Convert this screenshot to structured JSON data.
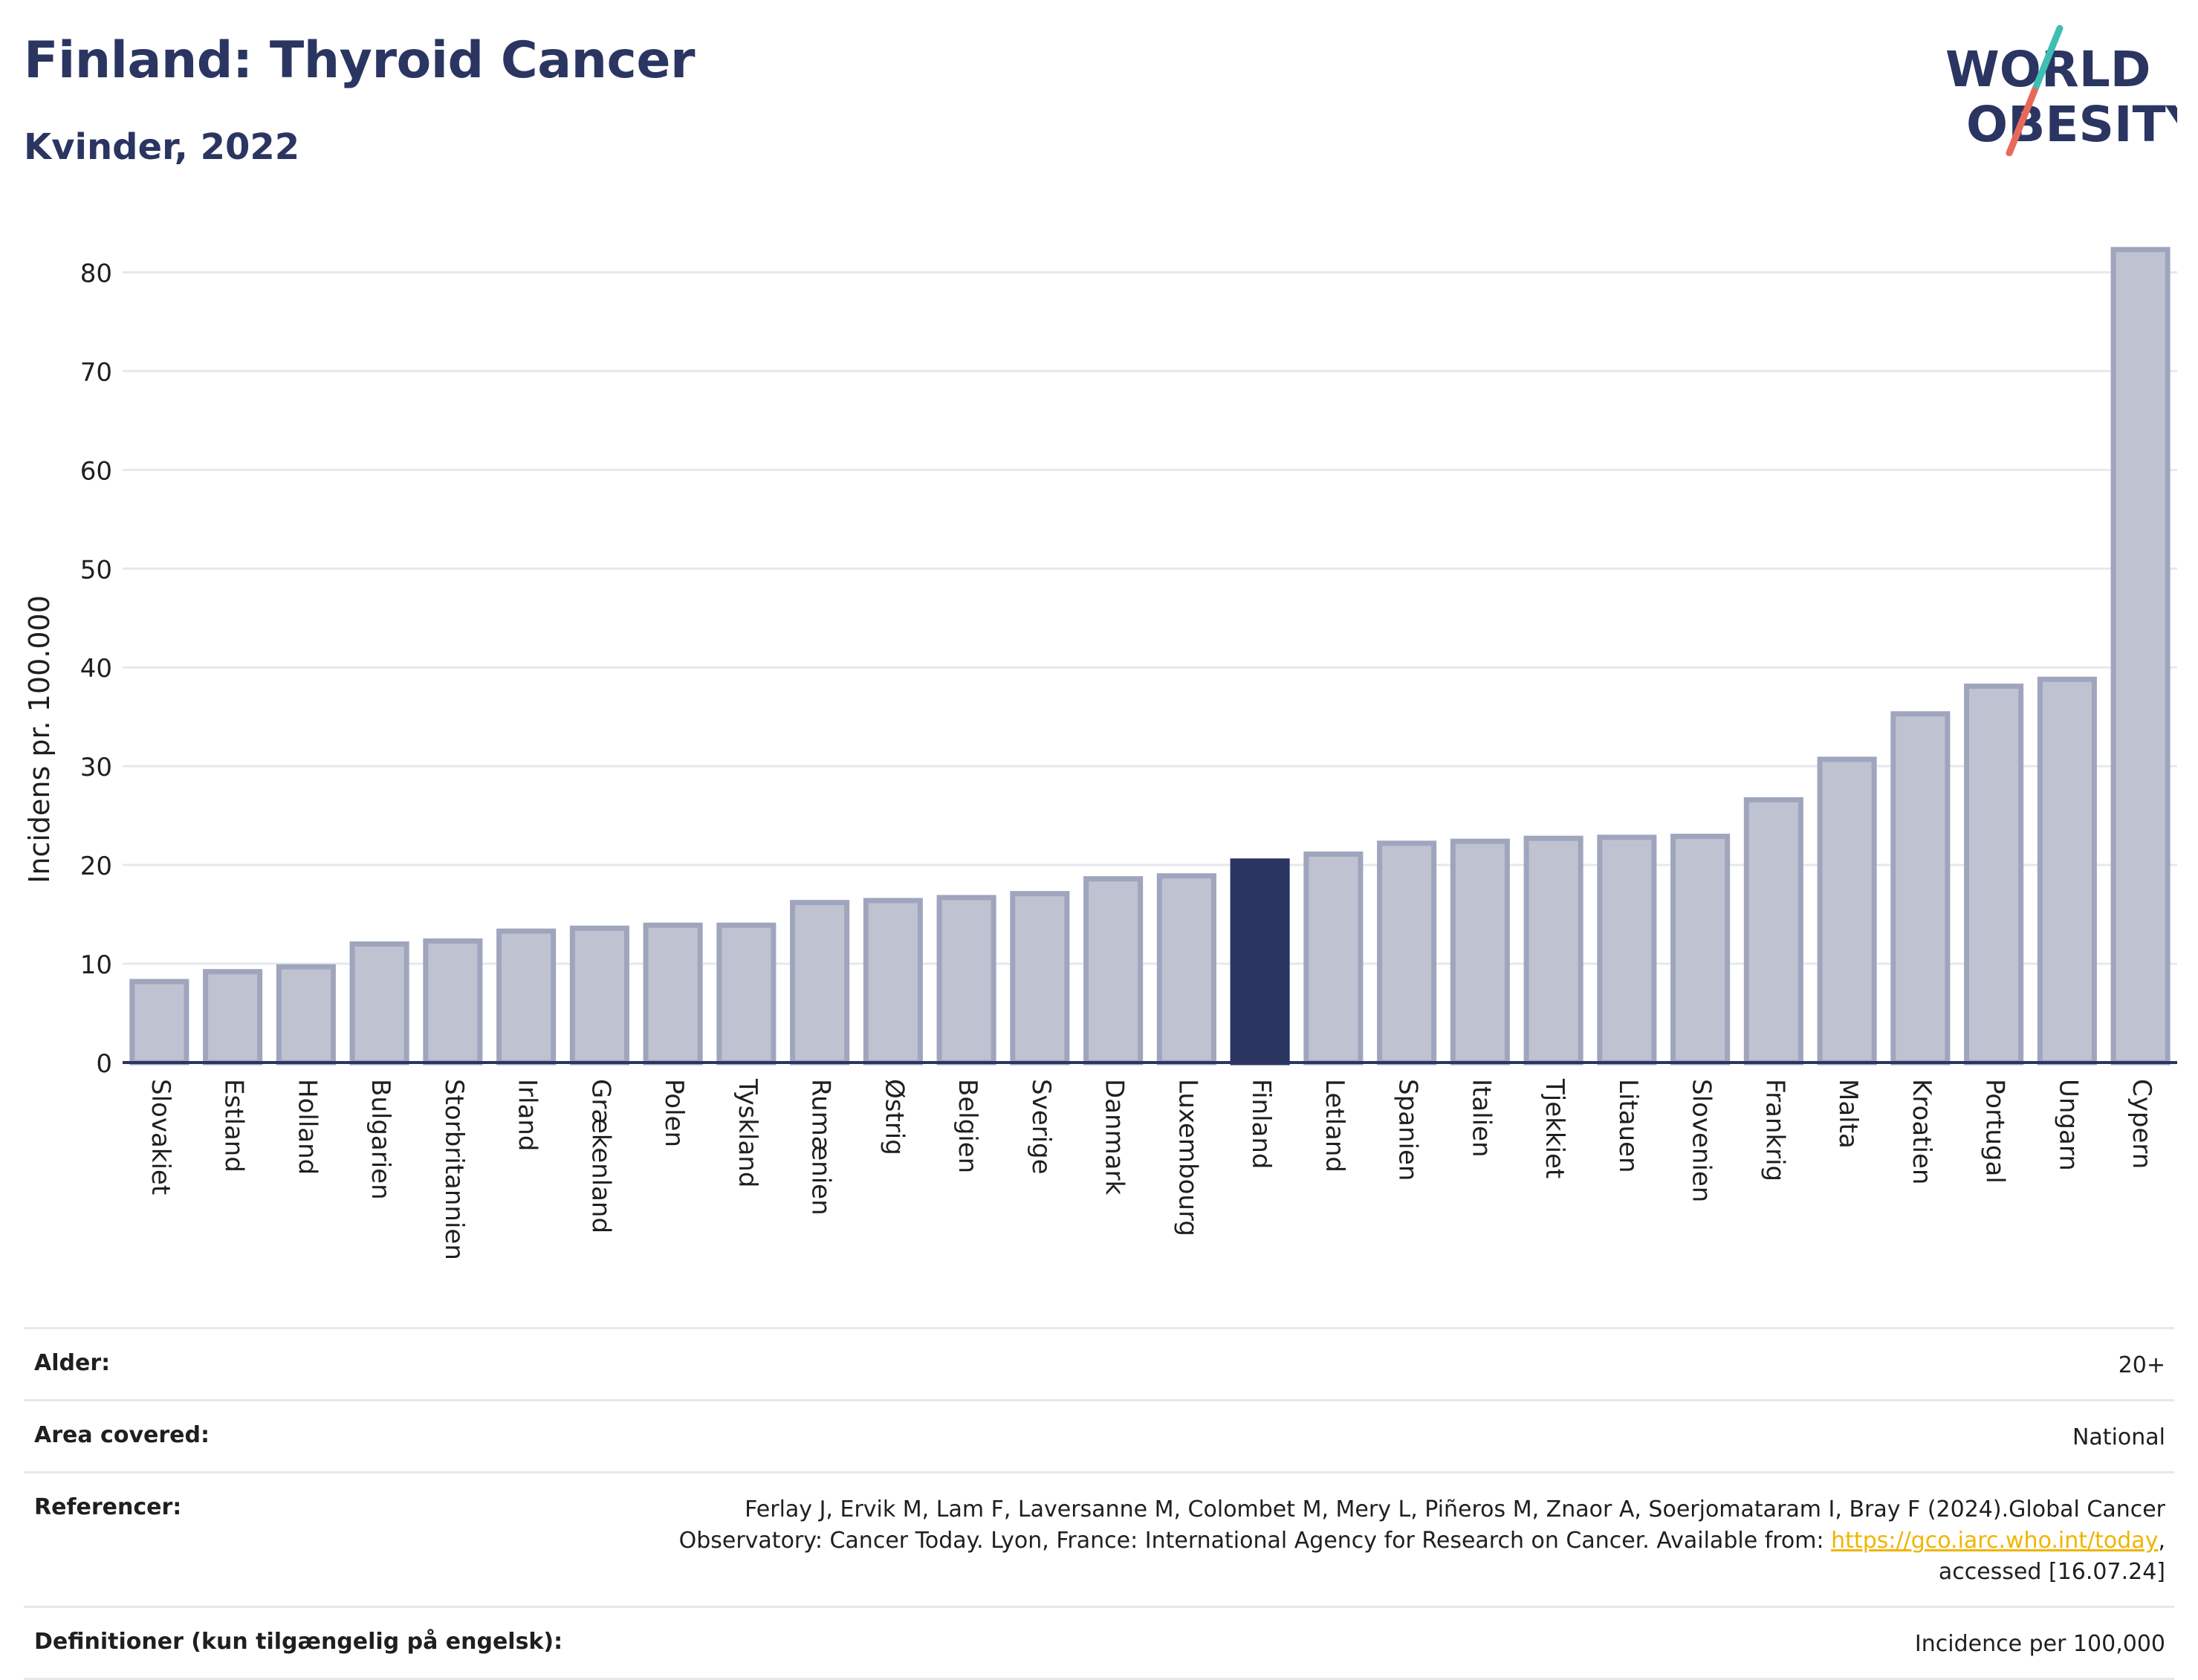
{
  "header": {
    "title": "Finland: Thyroid Cancer",
    "subtitle": "Kvinder, 2022"
  },
  "logo": {
    "line1": "WORLD",
    "line2": "OBESITY",
    "colors": {
      "text": "#2b3562",
      "slash_top": "#3fbfb3",
      "slash_bottom": "#e8695a"
    }
  },
  "colors": {
    "bar": "#bfc2d0",
    "bar_border": "#9fa5bd",
    "highlight": "#2b3562",
    "grid": "#e6e8ef",
    "axis": "#2b3562"
  },
  "chart_data": {
    "type": "bar",
    "title": "Finland: Thyroid Cancer",
    "subtitle": "Kvinder, 2022",
    "xlabel": "",
    "ylabel": "Incidens pr. 100.000",
    "ylim": [
      0,
      85
    ],
    "yticks": [
      0,
      10,
      20,
      30,
      40,
      50,
      60,
      70,
      80
    ],
    "grid": true,
    "highlight": "Finland",
    "categories": [
      "Slovakiet",
      "Estland",
      "Holland",
      "Bulgarien",
      "Storbritannien",
      "Irland",
      "Grækenland",
      "Polen",
      "Tyskland",
      "Rumænien",
      "Østrig",
      "Belgien",
      "Sverige",
      "Danmark",
      "Luxembourg",
      "Finland",
      "Letland",
      "Spanien",
      "Italien",
      "Tjekkiet",
      "Litauen",
      "Slovenien",
      "Frankrig",
      "Malta",
      "Kroatien",
      "Portugal",
      "Ungarn",
      "Cypern"
    ],
    "values": [
      8.2,
      9.2,
      9.7,
      12.0,
      12.3,
      13.3,
      13.6,
      13.9,
      13.9,
      16.2,
      16.4,
      16.7,
      17.1,
      18.6,
      18.9,
      20.4,
      21.1,
      22.2,
      22.4,
      22.7,
      22.8,
      22.9,
      26.6,
      30.7,
      35.3,
      38.1,
      38.8,
      82.3
    ]
  },
  "info": {
    "rows": [
      {
        "label": "Alder:",
        "value": "20+"
      },
      {
        "label": "Area covered:",
        "value": "National"
      },
      {
        "label": "Referencer:",
        "value_before_link": "Ferlay J, Ervik M, Lam F, Laversanne M, Colombet M, Mery L, Piñeros M, Znaor A, Soerjomataram I, Bray F (2024).Global Cancer Observatory: Cancer Today. Lyon, France: International Agency for Research on Cancer. Available from: ",
        "link": "https://gco.iarc.who.int/today",
        "value_after_link": ", accessed [16.07.24]"
      },
      {
        "label": "Definitioner (kun tilgængelig på engelsk):",
        "value": "Incidence per 100,000"
      }
    ]
  }
}
